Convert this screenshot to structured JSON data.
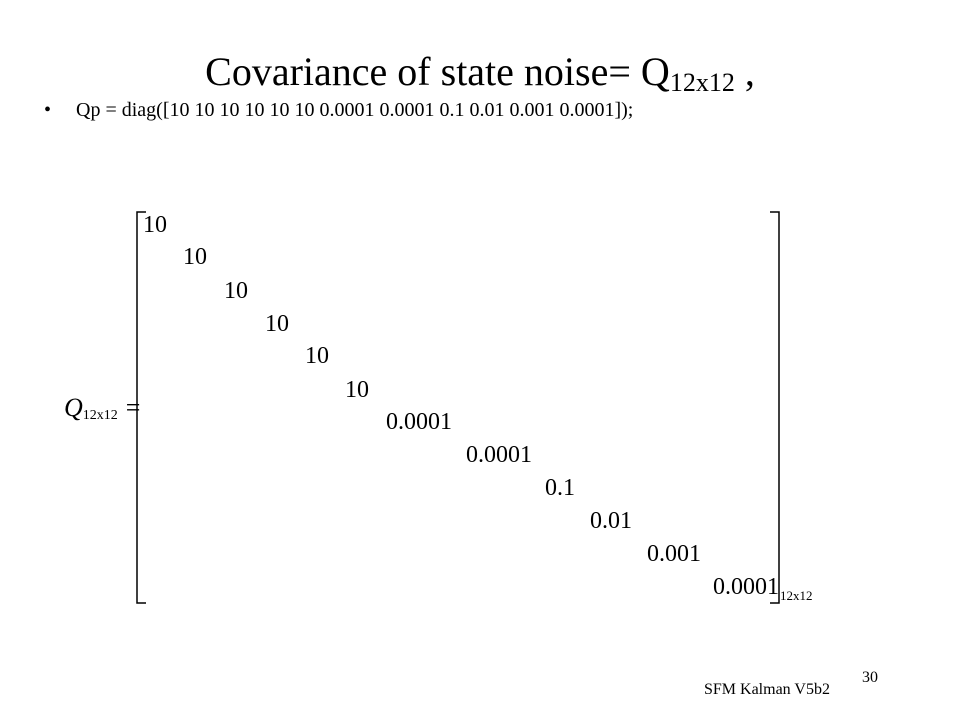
{
  "slide": {
    "title_main": "Covariance of state noise= Q",
    "title_sub": "12x12",
    "title_tail": " ,",
    "bullet_marker": "•",
    "bullet_text": "Qp = diag([10 10 10 10 10 10 0.0001 0.0001 0.1 0.01 0.001 0.0001]);",
    "matrix": {
      "lhs_symbol": "Q",
      "lhs_subscript": "12x12",
      "equals": "=",
      "size_label": "12x12",
      "diagonal": [
        "10",
        "10",
        "10",
        "10",
        "10",
        "10",
        "0.0001",
        "0.0001",
        "0.1",
        "0.01",
        "0.001",
        "0.0001"
      ]
    },
    "footer_label": "SFM Kalman V5b2",
    "page_number": "30"
  }
}
